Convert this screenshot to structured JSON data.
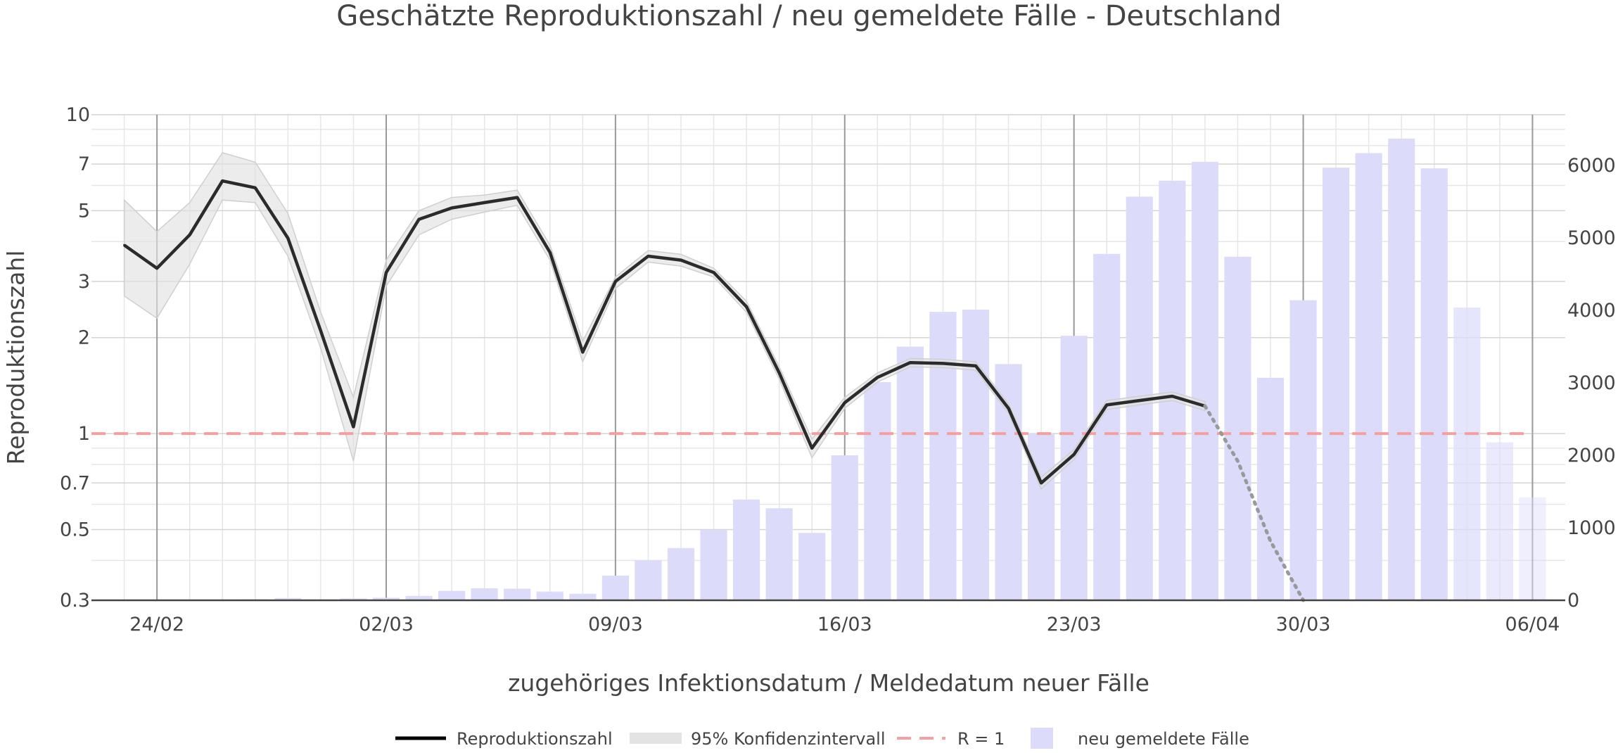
{
  "chart_data": {
    "type": "line",
    "title": "Geschätzte Reproduktionszahl / neu gemeldete Fälle - Deutschland",
    "xlabel": "zugehöriges Infektionsdatum / Meldedatum neuer Fälle",
    "ylabel": "Reproduktionszahl",
    "y_scale": "log",
    "ylim": [
      0.3,
      10
    ],
    "y_ticks": [
      "0.3",
      "0.5",
      "0.7",
      "1",
      "2",
      "3",
      "5",
      "7",
      "10"
    ],
    "y2_ticks": [
      "0",
      "1000",
      "2000",
      "3000",
      "4000",
      "5000",
      "6000"
    ],
    "y2_range": [
      0,
      6700
    ],
    "x_start": "2020-02-23",
    "x_range": [
      "2020-02-22",
      "2020-04-07"
    ],
    "x_ticks": [
      {
        "date": "2020-02-24",
        "label": "24/02"
      },
      {
        "date": "2020-03-02",
        "label": "02/03"
      },
      {
        "date": "2020-03-09",
        "label": "09/03"
      },
      {
        "date": "2020-03-16",
        "label": "16/03"
      },
      {
        "date": "2020-03-23",
        "label": "23/03"
      },
      {
        "date": "2020-03-30",
        "label": "30/03"
      },
      {
        "date": "2020-04-06",
        "label": "06/04"
      }
    ],
    "grid": true,
    "legend_position": "bottom",
    "series": [
      {
        "name": "Reproduktionszahl",
        "axis": "y",
        "color": "#2b2b2b",
        "x": [
          "2020-02-23",
          "2020-02-24",
          "2020-02-25",
          "2020-02-26",
          "2020-02-27",
          "2020-02-28",
          "2020-02-29",
          "2020-03-01",
          "2020-03-02",
          "2020-03-03",
          "2020-03-04",
          "2020-03-05",
          "2020-03-06",
          "2020-03-07",
          "2020-03-08",
          "2020-03-09",
          "2020-03-10",
          "2020-03-11",
          "2020-03-12",
          "2020-03-13",
          "2020-03-14",
          "2020-03-15",
          "2020-03-16",
          "2020-03-17",
          "2020-03-18",
          "2020-03-19",
          "2020-03-20",
          "2020-03-21",
          "2020-03-22",
          "2020-03-23",
          "2020-03-24",
          "2020-03-25",
          "2020-03-26",
          "2020-03-27"
        ],
        "values": [
          3.9,
          3.3,
          4.2,
          6.2,
          5.9,
          4.1,
          2.1,
          1.05,
          3.2,
          4.7,
          5.1,
          5.3,
          5.5,
          3.7,
          1.8,
          3.0,
          3.6,
          3.5,
          3.2,
          2.5,
          1.55,
          0.9,
          1.25,
          1.5,
          1.67,
          1.66,
          1.63,
          1.2,
          0.7,
          0.86,
          1.23,
          1.27,
          1.31,
          1.22
        ]
      },
      {
        "name": "Reproduktionszahl (Prognose)",
        "axis": "y",
        "color": "#999999",
        "x": [
          "2020-03-27",
          "2020-03-28",
          "2020-03-29",
          "2020-03-30"
        ],
        "values": [
          1.22,
          0.82,
          0.46,
          0.3
        ]
      },
      {
        "name": "95% Konfidenzintervall",
        "axis": "y",
        "color": "#e0e0e0",
        "x": [
          "2020-02-23",
          "2020-02-24",
          "2020-02-25",
          "2020-02-26",
          "2020-02-27",
          "2020-02-28",
          "2020-02-29",
          "2020-03-01",
          "2020-03-02",
          "2020-03-03",
          "2020-03-04",
          "2020-03-05",
          "2020-03-06",
          "2020-03-07",
          "2020-03-08",
          "2020-03-09",
          "2020-03-10",
          "2020-03-11",
          "2020-03-12",
          "2020-03-13",
          "2020-03-14",
          "2020-03-15",
          "2020-03-16",
          "2020-03-17",
          "2020-03-18",
          "2020-03-19",
          "2020-03-20",
          "2020-03-21",
          "2020-03-22",
          "2020-03-23",
          "2020-03-24",
          "2020-03-25",
          "2020-03-26",
          "2020-03-27"
        ],
        "upper": [
          5.4,
          4.3,
          5.3,
          7.6,
          7.1,
          4.9,
          2.4,
          1.3,
          3.5,
          5.0,
          5.5,
          5.6,
          5.8,
          3.9,
          1.95,
          3.1,
          3.75,
          3.65,
          3.3,
          2.6,
          1.62,
          0.96,
          1.3,
          1.55,
          1.72,
          1.71,
          1.68,
          1.24,
          0.73,
          0.89,
          1.27,
          1.31,
          1.35,
          1.26
        ],
        "lower": [
          2.7,
          2.3,
          3.4,
          5.4,
          5.3,
          3.6,
          1.85,
          0.82,
          2.9,
          4.2,
          4.7,
          4.95,
          5.2,
          3.5,
          1.68,
          2.85,
          3.45,
          3.35,
          3.1,
          2.4,
          1.48,
          0.84,
          1.2,
          1.45,
          1.62,
          1.61,
          1.58,
          1.16,
          0.67,
          0.83,
          1.19,
          1.23,
          1.27,
          1.18
        ]
      },
      {
        "name": "R = 1",
        "axis": "y",
        "color": "#f4a0a0",
        "x": [
          "2020-02-22",
          "2020-04-06"
        ],
        "values": [
          1,
          1
        ]
      },
      {
        "name": "neu gemeldete Fälle",
        "type": "bar",
        "axis": "y2",
        "color": "#dcdcfa",
        "x": [
          "2020-02-24",
          "2020-02-25",
          "2020-02-26",
          "2020-02-27",
          "2020-02-28",
          "2020-02-29",
          "2020-03-01",
          "2020-03-02",
          "2020-03-03",
          "2020-03-04",
          "2020-03-05",
          "2020-03-06",
          "2020-03-07",
          "2020-03-08",
          "2020-03-09",
          "2020-03-10",
          "2020-03-11",
          "2020-03-12",
          "2020-03-13",
          "2020-03-14",
          "2020-03-15",
          "2020-03-16",
          "2020-03-17",
          "2020-03-18",
          "2020-03-19",
          "2020-03-20",
          "2020-03-21",
          "2020-03-22",
          "2020-03-23",
          "2020-03-24",
          "2020-03-25",
          "2020-03-26",
          "2020-03-27",
          "2020-03-28",
          "2020-03-29",
          "2020-03-30",
          "2020-03-31",
          "2020-04-01",
          "2020-04-02",
          "2020-04-03",
          "2020-04-04",
          "2020-04-05",
          "2020-04-06"
        ],
        "values": [
          5,
          8,
          10,
          14,
          30,
          12,
          25,
          35,
          60,
          130,
          165,
          160,
          120,
          90,
          340,
          555,
          720,
          970,
          1390,
          1270,
          930,
          2000,
          3010,
          3500,
          3980,
          4010,
          3260,
          2300,
          3650,
          4780,
          5570,
          5790,
          6050,
          4740,
          3070,
          4140,
          5970,
          6170,
          6370,
          5960,
          4040,
          2180,
          1420
        ]
      }
    ]
  },
  "legend": {
    "items": [
      {
        "label": "Reproduktionszahl",
        "color": "#000000"
      },
      {
        "label": "95% Konfidenzintervall",
        "color": "#e3e3e3"
      },
      {
        "label": "R = 1",
        "color": "#f4a0a0"
      },
      {
        "label": "neu gemeldete Fälle",
        "color": "#dcdcfa"
      }
    ]
  },
  "colors": {
    "grid_major": "#999999",
    "grid_minor": "#e6e6e6",
    "axis_line": "#444444",
    "text": "#444444"
  }
}
